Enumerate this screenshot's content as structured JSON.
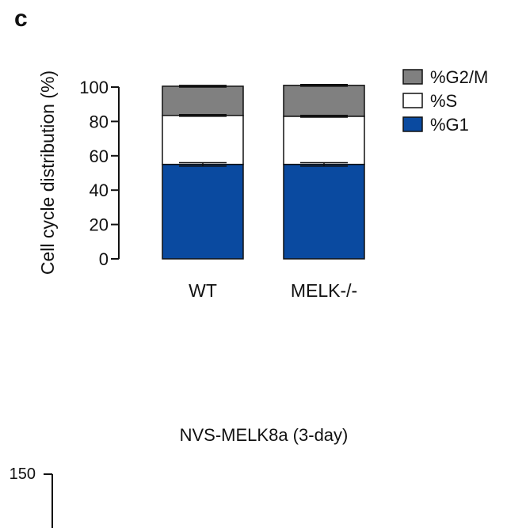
{
  "panel_label": "c",
  "chart_data": [
    {
      "type": "bar",
      "stacked": true,
      "categories": [
        "WT",
        "MELK-/-"
      ],
      "series": [
        {
          "name": "%G1",
          "values": [
            55,
            55
          ],
          "error": [
            1,
            1
          ],
          "color": "#0a4aa0"
        },
        {
          "name": "%S",
          "values": [
            28.5,
            28
          ],
          "error": [
            0.5,
            0.5
          ],
          "color": "#ffffff"
        },
        {
          "name": "%G2/M",
          "values": [
            17,
            18
          ],
          "error": [
            0.5,
            0.5
          ],
          "color": "#808080"
        }
      ],
      "legend_order": [
        "%G2/M",
        "%S",
        "%G1"
      ],
      "ylabel": "Cell cycle distribution (%)",
      "ylim": [
        0,
        100
      ],
      "yticks": [
        0,
        20,
        40,
        60,
        80,
        100
      ],
      "legend_position": "top-right",
      "grid": false
    },
    {
      "type": "bar",
      "title": "NVS-MELK8a (3-day)",
      "ytick_visible": "150"
    }
  ]
}
